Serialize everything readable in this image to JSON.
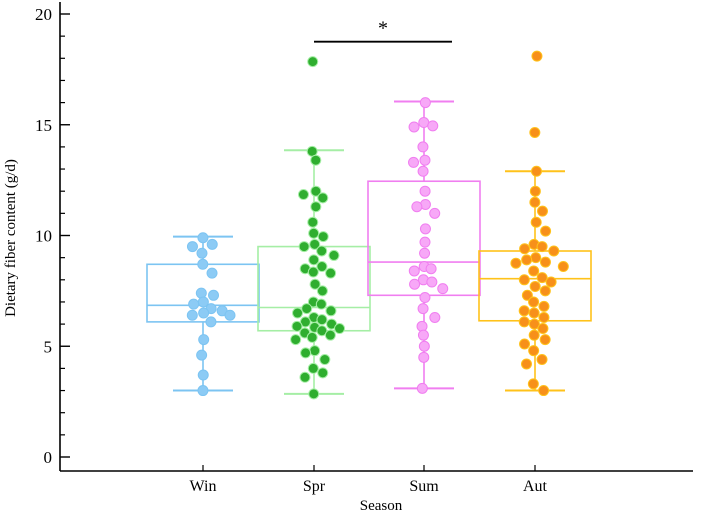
{
  "chart_data": {
    "type": "box-swarm",
    "title": "",
    "xlabel": "Season",
    "ylabel": "Dietary fiber content  (g/d)",
    "ylim": [
      0,
      20
    ],
    "yticks": [
      0,
      5,
      10,
      15,
      20
    ],
    "y_minor_step": 1,
    "categories": [
      "Win",
      "Spr",
      "Sum",
      "Aut"
    ],
    "series": [
      {
        "name": "Win",
        "color": "#7cc4f2",
        "fill": "#8ccbf5",
        "box": {
          "min": 3.0,
          "q1": 6.1,
          "median": 6.85,
          "q3": 8.7,
          "max": 9.95
        },
        "points": [
          9.9,
          9.6,
          9.5,
          9.2,
          8.7,
          8.3,
          7.4,
          7.3,
          7.0,
          6.9,
          6.7,
          6.6,
          6.5,
          6.4,
          6.4,
          6.1,
          5.3,
          4.6,
          3.7,
          3.0
        ]
      },
      {
        "name": "Spr",
        "color": "#a5eea5",
        "fill": "#2fae2f",
        "box": {
          "min": 2.85,
          "q1": 5.7,
          "median": 6.75,
          "q3": 9.5,
          "max": 13.85
        },
        "points": [
          17.85,
          13.8,
          13.4,
          12.0,
          11.85,
          11.7,
          11.3,
          10.6,
          10.1,
          9.95,
          9.6,
          9.5,
          9.3,
          9.1,
          8.9,
          8.6,
          8.5,
          8.35,
          8.3,
          7.8,
          7.5,
          7.0,
          6.9,
          6.7,
          6.6,
          6.5,
          6.3,
          6.2,
          6.1,
          6.0,
          5.9,
          5.85,
          5.8,
          5.7,
          5.6,
          5.5,
          5.4,
          5.3,
          4.8,
          4.7,
          4.4,
          4.0,
          3.8,
          3.6,
          2.85
        ]
      },
      {
        "name": "Sum",
        "color": "#f07ef0",
        "fill": "#f7a8f7",
        "box": {
          "min": 3.1,
          "q1": 7.3,
          "median": 8.8,
          "q3": 12.45,
          "max": 16.05
        },
        "points": [
          16.0,
          15.1,
          14.95,
          14.9,
          14.0,
          13.4,
          13.3,
          12.9,
          12.0,
          11.4,
          11.3,
          11.0,
          10.3,
          9.7,
          9.2,
          8.6,
          8.5,
          8.4,
          8.0,
          7.9,
          7.8,
          7.6,
          7.2,
          6.7,
          6.3,
          5.9,
          5.5,
          5.0,
          4.5,
          3.1
        ]
      },
      {
        "name": "Aut",
        "color": "#ffc21a",
        "fill": "#f7901a",
        "box": {
          "min": 3.0,
          "q1": 6.15,
          "median": 8.05,
          "q3": 9.3,
          "max": 12.9
        },
        "points": [
          18.1,
          14.65,
          12.9,
          12.0,
          11.5,
          11.1,
          10.6,
          10.2,
          9.6,
          9.5,
          9.4,
          9.3,
          9.0,
          8.9,
          8.8,
          8.75,
          8.6,
          8.4,
          8.1,
          8.0,
          7.9,
          7.7,
          7.5,
          7.3,
          7.0,
          6.8,
          6.6,
          6.5,
          6.3,
          6.1,
          6.0,
          5.8,
          5.5,
          5.3,
          5.1,
          4.8,
          4.4,
          4.2,
          3.3,
          3.0
        ]
      }
    ],
    "annotations": [
      {
        "type": "significance",
        "from": "Spr",
        "to": "Sum",
        "y": 18.75,
        "label": "*"
      }
    ],
    "grid": false,
    "legend": "none"
  }
}
